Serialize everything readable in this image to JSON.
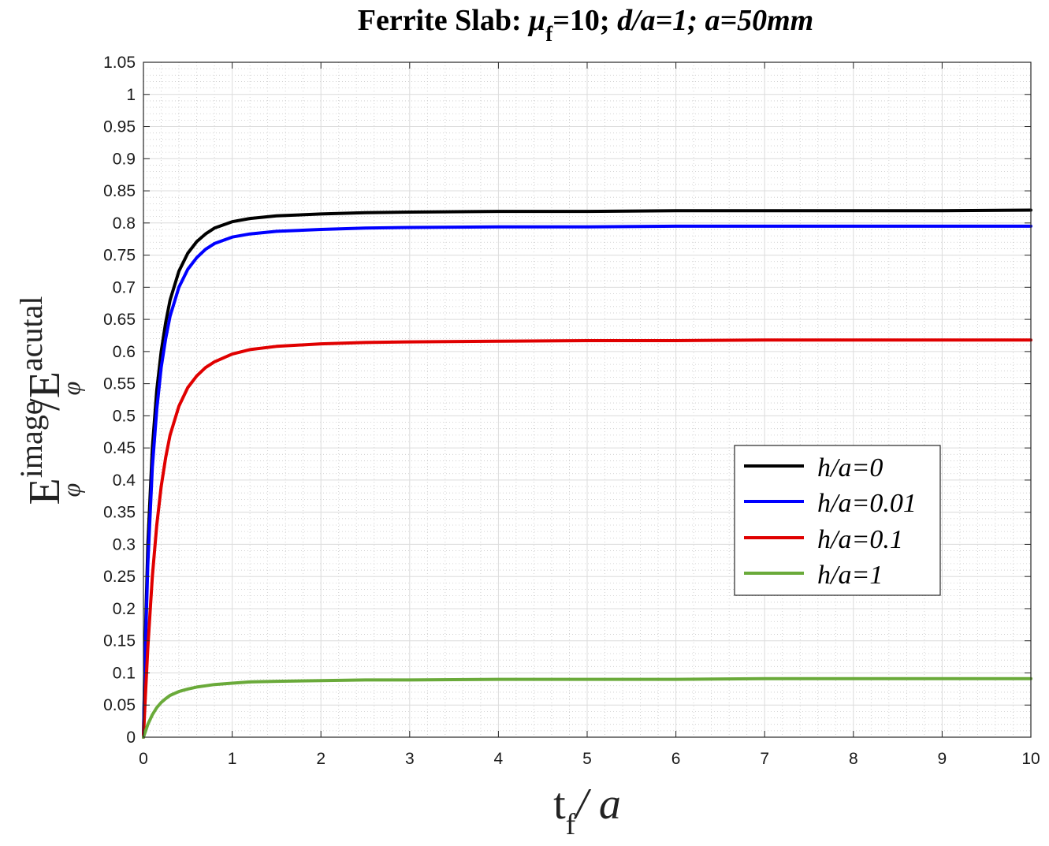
{
  "chart_data": {
    "type": "line",
    "title": {
      "prefix": "Ferrite Slab: ",
      "mu": "μ",
      "mu_sub": "f",
      "mu_value": "=10; ",
      "d_ratio": "d/a=1; ",
      "a_value": "a=50mm"
    },
    "xlabel": {
      "main": "t",
      "sub": "f",
      "rest": "/ a"
    },
    "ylabel": {
      "e1": "E",
      "e1_sup": "image",
      "e1_sub": "φ",
      "slash": "/",
      "e2": "E",
      "e2_sup": "acutal",
      "e2_sub": "φ"
    },
    "xlim": [
      0,
      10
    ],
    "ylim": [
      0,
      1.05
    ],
    "x_ticks": [
      0,
      1,
      2,
      3,
      4,
      5,
      6,
      7,
      8,
      9,
      10
    ],
    "y_ticks": [
      0,
      0.05,
      0.1,
      0.15,
      0.2,
      0.25,
      0.3,
      0.35,
      0.4,
      0.45,
      0.5,
      0.55,
      0.6,
      0.65,
      0.7,
      0.75,
      0.8,
      0.85,
      0.9,
      0.95,
      1,
      1.05
    ],
    "y_tick_labels": [
      "0",
      "0.05",
      "0.1",
      "0.15",
      "0.2",
      "0.25",
      "0.3",
      "0.35",
      "0.4",
      "0.45",
      "0.5",
      "0.55",
      "0.6",
      "0.65",
      "0.7",
      "0.75",
      "0.8",
      "0.85",
      "0.9",
      "0.95",
      "1",
      "1.05"
    ],
    "grid": true,
    "minor_grid": true,
    "legend_position": "center-right",
    "x": [
      0,
      0.02,
      0.05,
      0.1,
      0.15,
      0.2,
      0.25,
      0.3,
      0.4,
      0.5,
      0.6,
      0.7,
      0.8,
      1,
      1.2,
      1.5,
      2,
      2.5,
      3,
      4,
      5,
      6,
      7,
      8,
      9,
      10
    ],
    "series": [
      {
        "name": "h/a=0",
        "color": "#000000",
        "values": [
          0,
          0.15,
          0.3,
          0.45,
          0.54,
          0.6,
          0.645,
          0.68,
          0.725,
          0.753,
          0.771,
          0.783,
          0.792,
          0.802,
          0.807,
          0.811,
          0.814,
          0.816,
          0.817,
          0.818,
          0.818,
          0.819,
          0.819,
          0.819,
          0.819,
          0.82
        ]
      },
      {
        "name": "h/a=0.01",
        "color": "#0000ff",
        "values": [
          0,
          0.13,
          0.27,
          0.42,
          0.51,
          0.575,
          0.62,
          0.655,
          0.7,
          0.728,
          0.746,
          0.759,
          0.768,
          0.778,
          0.783,
          0.787,
          0.79,
          0.792,
          0.793,
          0.794,
          0.794,
          0.795,
          0.795,
          0.795,
          0.795,
          0.795
        ]
      },
      {
        "name": "h/a=0.1",
        "color": "#e00000",
        "values": [
          0,
          0.06,
          0.14,
          0.25,
          0.33,
          0.39,
          0.435,
          0.47,
          0.515,
          0.544,
          0.562,
          0.575,
          0.584,
          0.596,
          0.603,
          0.608,
          0.612,
          0.614,
          0.615,
          0.616,
          0.617,
          0.617,
          0.618,
          0.618,
          0.618,
          0.618
        ]
      },
      {
        "name": "h/a=1",
        "color": "#6aaa3a",
        "values": [
          0,
          0.008,
          0.02,
          0.035,
          0.046,
          0.054,
          0.06,
          0.065,
          0.071,
          0.075,
          0.078,
          0.08,
          0.082,
          0.084,
          0.086,
          0.087,
          0.088,
          0.089,
          0.089,
          0.09,
          0.09,
          0.09,
          0.091,
          0.091,
          0.091,
          0.091
        ]
      }
    ]
  }
}
